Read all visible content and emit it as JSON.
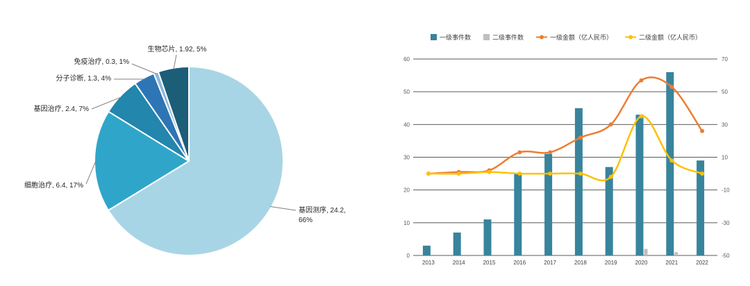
{
  "page": {
    "background": "#ffffff"
  },
  "chart_data": [
    {
      "type": "pie",
      "title": "",
      "slices": [
        {
          "label": "基因测序",
          "value": 24.2,
          "pct": "66%",
          "color": "#a8d5e5"
        },
        {
          "label": "细胞治疗",
          "value": 6.4,
          "pct": "17%",
          "color": "#2fa6c9"
        },
        {
          "label": "基因治疗",
          "value": 2.4,
          "pct": "7%",
          "color": "#2286ad"
        },
        {
          "label": "分子诊断",
          "value": 1.3,
          "pct": "4%",
          "color": "#2e75b6"
        },
        {
          "label": "免疫治疗",
          "value": 0.3,
          "pct": "1%",
          "color": "#8db8d8"
        },
        {
          "label": "生物芯片",
          "value": 1.92,
          "pct": "5%",
          "color": "#1c5d77"
        }
      ]
    },
    {
      "type": "combo",
      "categories": [
        "2013",
        "2014",
        "2015",
        "2016",
        "2017",
        "2018",
        "2019",
        "2020",
        "2021",
        "2022"
      ],
      "left_axis": {
        "min": 0,
        "max": 60,
        "step": 10,
        "ticks": [
          "0",
          "10",
          "20",
          "30",
          "40",
          "50",
          "60"
        ]
      },
      "right_axis": {
        "min": -50,
        "max": 70,
        "step": 20,
        "ticks": [
          "-50",
          "-30",
          "-10",
          "10",
          "30",
          "50",
          "70"
        ]
      },
      "grid": true,
      "legend_position": "top",
      "series": [
        {
          "name": "一级事件数",
          "type": "bar",
          "axis": "left",
          "color": "#38849c",
          "values": [
            3,
            7,
            11,
            25,
            31,
            45,
            27,
            43,
            56,
            29
          ]
        },
        {
          "name": "二级事件数",
          "type": "bar",
          "axis": "left",
          "color": "#bfbfbf",
          "values": [
            0,
            0,
            0,
            0,
            0,
            0,
            0,
            2,
            1,
            0
          ]
        },
        {
          "name": "一级金额（亿人民币）",
          "type": "line",
          "axis": "right",
          "color": "#ed7d31",
          "values": [
            0,
            1,
            2,
            13,
            13,
            22,
            30,
            57,
            53,
            26
          ]
        },
        {
          "name": "二级金额（亿人民币）",
          "type": "line",
          "axis": "right",
          "color": "#ffc000",
          "values": [
            0,
            0,
            1,
            0,
            0,
            0,
            -2,
            35,
            8,
            0
          ]
        }
      ]
    }
  ]
}
